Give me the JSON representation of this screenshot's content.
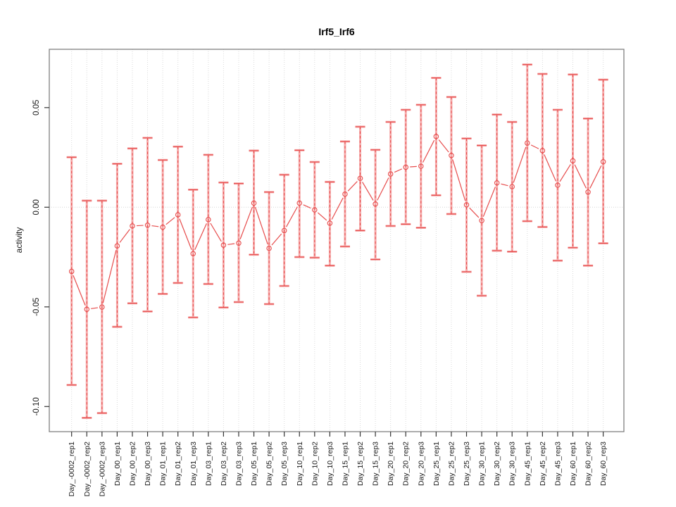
{
  "header": {
    "title": "Irf5_Irf6"
  },
  "chart_data": {
    "type": "line",
    "subtype": "means-with-error-bars",
    "title": "Irf5_Irf6",
    "xlabel": "",
    "ylabel": "activity",
    "ylim": [
      -0.113,
      0.079
    ],
    "yticks": [
      0.05,
      0.0,
      -0.05,
      -0.1
    ],
    "ytick_labels": [
      "0.05",
      "0.00",
      "-0.05",
      "-0.10"
    ],
    "grid": "vertical dotted gridline at every category; dotted horizontal reference line at 0",
    "legend": "none",
    "marker": "open-circle",
    "categories": [
      "Day_-0002_rep1",
      "Day_-0002_rep2",
      "Day_-0002_rep3",
      "Day_00_rep1",
      "Day_00_rep2",
      "Day_00_rep3",
      "Day_01_rep1",
      "Day_01_rep2",
      "Day_01_rep3",
      "Day_03_rep1",
      "Day_03_rep2",
      "Day_03_rep3",
      "Day_05_rep1",
      "Day_05_rep2",
      "Day_05_rep3",
      "Day_10_rep1",
      "Day_10_rep2",
      "Day_10_rep3",
      "Day_15_rep1",
      "Day_15_rep2",
      "Day_15_rep3",
      "Day_20_rep1",
      "Day_20_rep2",
      "Day_20_rep3",
      "Day_25_rep1",
      "Day_25_rep2",
      "Day_25_rep3",
      "Day_30_rep1",
      "Day_30_rep2",
      "Day_30_rep3",
      "Day_45_rep1",
      "Day_45_rep2",
      "Day_45_rep3",
      "Day_60_rep1",
      "Day_60_rep2",
      "Day_60_rep3"
    ],
    "series": [
      {
        "name": "mean",
        "values": [
          -0.0322,
          -0.0512,
          -0.0501,
          -0.0194,
          -0.0094,
          -0.009,
          -0.01,
          -0.0038,
          -0.0233,
          -0.0062,
          -0.019,
          -0.018,
          0.0021,
          -0.0206,
          -0.0117,
          0.0021,
          -0.0013,
          -0.008,
          0.0066,
          0.0145,
          0.0016,
          0.0167,
          0.0201,
          0.0206,
          0.0355,
          0.026,
          0.0012,
          -0.0067,
          0.0122,
          0.0103,
          0.0322,
          0.0284,
          0.0111,
          0.0233,
          0.0076,
          0.0228
        ]
      },
      {
        "name": "upper",
        "values": [
          0.0251,
          0.0033,
          0.0033,
          0.0218,
          0.0295,
          0.0348,
          0.0237,
          0.0304,
          0.0088,
          0.0263,
          0.0124,
          0.0119,
          0.0284,
          0.0076,
          0.0163,
          0.0286,
          0.0227,
          0.0127,
          0.033,
          0.0404,
          0.0288,
          0.0428,
          0.0489,
          0.0514,
          0.0649,
          0.0553,
          0.0345,
          0.031,
          0.0465,
          0.0428,
          0.0716,
          0.0669,
          0.0489,
          0.0666,
          0.0445,
          0.064
        ]
      },
      {
        "name": "lower",
        "values": [
          -0.0892,
          -0.1057,
          -0.1033,
          -0.06,
          -0.0482,
          -0.0523,
          -0.0435,
          -0.038,
          -0.0553,
          -0.0385,
          -0.0503,
          -0.0476,
          -0.0238,
          -0.0486,
          -0.0395,
          -0.025,
          -0.0253,
          -0.0293,
          -0.0197,
          -0.0117,
          -0.0262,
          -0.0094,
          -0.0085,
          -0.0103,
          0.006,
          -0.0034,
          -0.0324,
          -0.0444,
          -0.0218,
          -0.0223,
          -0.007,
          -0.0099,
          -0.0268,
          -0.0203,
          -0.0293,
          -0.0181
        ]
      }
    ],
    "colors": {
      "line": "#e74c4c",
      "errorbar_light": "#f5abab",
      "errorbar_dark": "#e74c4c",
      "gridline": "#dadada",
      "zero_line": "#d6d6d6",
      "box": "#7f7f7f",
      "tick": "#333333",
      "text": "#1a1a1a"
    }
  }
}
